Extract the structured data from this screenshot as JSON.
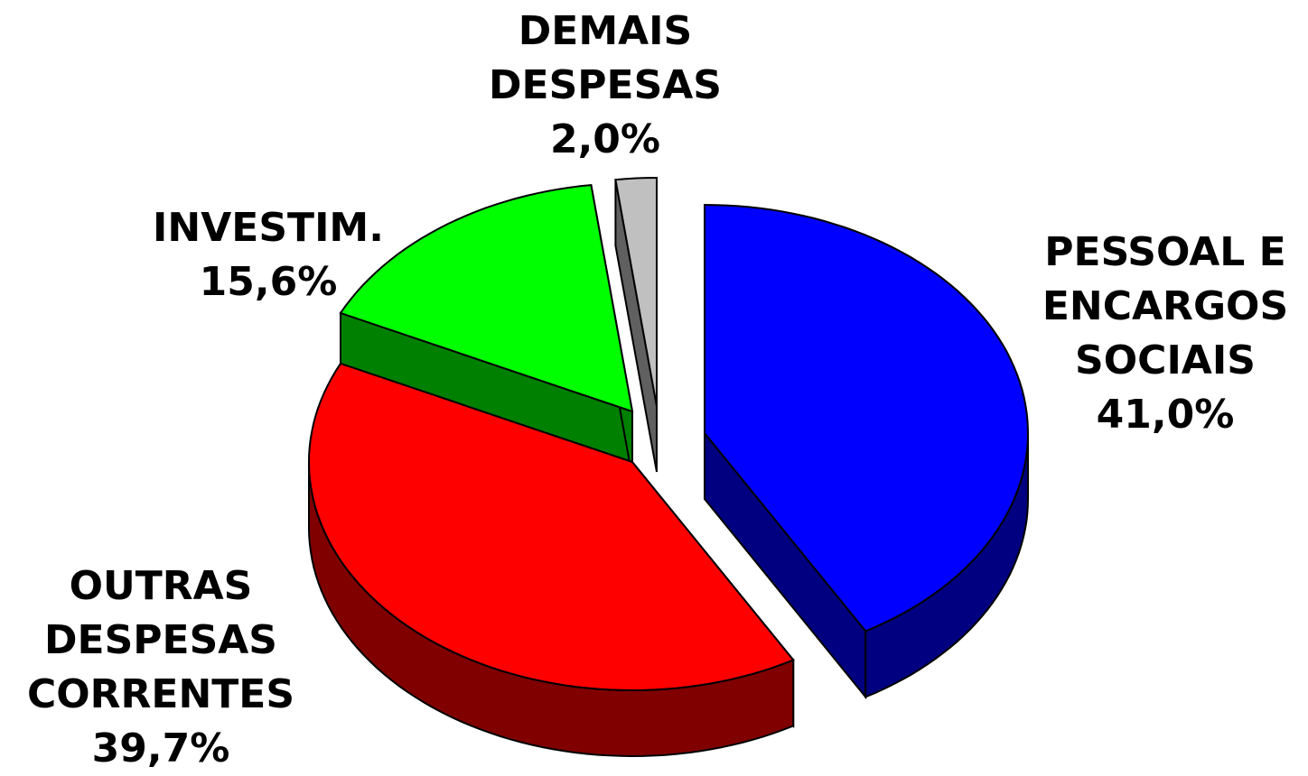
{
  "chart_data": {
    "type": "pie",
    "categories": [
      "PESSOAL E\nENCARGOS\nSOCIAIS",
      "OUTRAS\nDESPESAS\nCORRENTES",
      "INVESTIM.",
      "DEMAIS\nDESPESAS"
    ],
    "values": [
      41.0,
      39.7,
      15.6,
      2.0
    ],
    "value_labels": [
      "41,0%",
      "39,7%",
      "15,6%",
      "2,0%"
    ],
    "colors": [
      "#0000ff",
      "#ff0000",
      "#00ff00",
      "#c0c0c0"
    ]
  }
}
